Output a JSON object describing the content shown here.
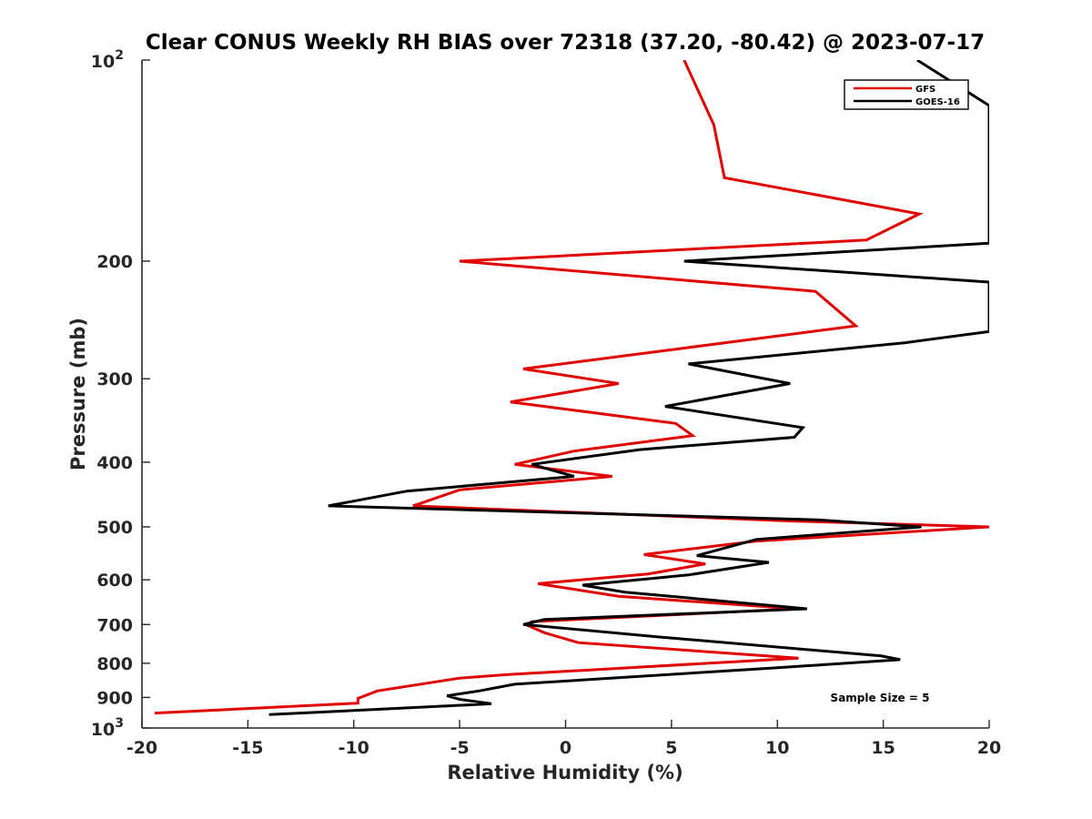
{
  "chart_data": {
    "type": "line",
    "title": "Clear CONUS Weekly RH BIAS over 72318 (37.20, -80.42) @ 2023-07-17",
    "xlabel": "Relative Humidity (%)",
    "ylabel": "Pressure (mb)",
    "xlim": [
      -20,
      20
    ],
    "ylim": [
      100,
      1000
    ],
    "y_scale": "log",
    "y_reversed": true,
    "grid": false,
    "legend_position": "top-right",
    "x_ticks": [
      -20,
      -15,
      -10,
      -5,
      0,
      5,
      10,
      15,
      20
    ],
    "x_tick_labels": [
      "-20",
      "-15",
      "-10",
      "-5",
      "0",
      "5",
      "10",
      "15",
      "20"
    ],
    "y_ticks": [
      {
        "value": 100,
        "base": "10",
        "exp": "2"
      },
      {
        "value": 200,
        "base": "200",
        "exp": ""
      },
      {
        "value": 300,
        "base": "300",
        "exp": ""
      },
      {
        "value": 400,
        "base": "400",
        "exp": ""
      },
      {
        "value": 500,
        "base": "500",
        "exp": ""
      },
      {
        "value": 600,
        "base": "600",
        "exp": ""
      },
      {
        "value": 700,
        "base": "700",
        "exp": ""
      },
      {
        "value": 800,
        "base": "800",
        "exp": ""
      },
      {
        "value": 900,
        "base": "900",
        "exp": ""
      },
      {
        "value": 1000,
        "base": "10",
        "exp": "3"
      }
    ],
    "annotation": "Sample Size = 5",
    "series": [
      {
        "name": "GFS",
        "color": "#e00000",
        "points": [
          [
            5.6,
            100
          ],
          [
            7.0,
            125
          ],
          [
            7.5,
            150
          ],
          [
            16.7,
            170
          ],
          [
            14.2,
            186
          ],
          [
            -5.0,
            200
          ],
          [
            11.8,
            222
          ],
          [
            13.7,
            250
          ],
          [
            -2.0,
            290
          ],
          [
            2.5,
            305
          ],
          [
            -2.6,
            325
          ],
          [
            5.2,
            350
          ],
          [
            6.0,
            365
          ],
          [
            0.4,
            385
          ],
          [
            -2.4,
            403
          ],
          [
            2.2,
            420
          ],
          [
            -5.0,
            440
          ],
          [
            -7.2,
            465
          ],
          [
            10.7,
            490
          ],
          [
            20.0,
            500
          ],
          [
            9.0,
            525
          ],
          [
            3.7,
            550
          ],
          [
            6.6,
            568
          ],
          [
            3.9,
            588
          ],
          [
            -1.3,
            608
          ],
          [
            2.5,
            635
          ],
          [
            10.9,
            663
          ],
          [
            -1.6,
            693
          ],
          [
            -1.8,
            702
          ],
          [
            -1.0,
            720
          ],
          [
            0.6,
            745
          ],
          [
            11.0,
            786
          ],
          [
            -2.8,
            832
          ],
          [
            -5.0,
            842
          ],
          [
            -8.9,
            880
          ],
          [
            -9.8,
            903
          ],
          [
            -9.8,
            918
          ],
          [
            -19.4,
            950
          ]
        ]
      },
      {
        "name": "GOES-16",
        "color": "#000000",
        "points": [
          [
            16.6,
            100
          ],
          [
            20.0,
            117
          ],
          [
            20.0,
            188
          ],
          [
            5.6,
            200
          ],
          [
            20.0,
            215
          ],
          [
            20.0,
            255
          ],
          [
            16.0,
            265
          ],
          [
            5.8,
            285
          ],
          [
            10.6,
            305
          ],
          [
            4.7,
            330
          ],
          [
            11.2,
            355
          ],
          [
            10.8,
            367
          ],
          [
            3.5,
            383
          ],
          [
            -1.6,
            403
          ],
          [
            0.4,
            420
          ],
          [
            -7.5,
            442
          ],
          [
            -11.2,
            465
          ],
          [
            11.9,
            488
          ],
          [
            16.8,
            500
          ],
          [
            9.0,
            522
          ],
          [
            6.2,
            552
          ],
          [
            9.6,
            565
          ],
          [
            5.8,
            590
          ],
          [
            0.8,
            611
          ],
          [
            2.8,
            626
          ],
          [
            11.4,
            663
          ],
          [
            -1.0,
            688
          ],
          [
            -2.0,
            700
          ],
          [
            4.3,
            730
          ],
          [
            14.9,
            780
          ],
          [
            15.8,
            790
          ],
          [
            10.1,
            812
          ],
          [
            -2.4,
            860
          ],
          [
            -4.1,
            880
          ],
          [
            -5.6,
            895
          ],
          [
            -5.0,
            906
          ],
          [
            -3.5,
            920
          ],
          [
            -14.0,
            955
          ]
        ]
      }
    ]
  }
}
